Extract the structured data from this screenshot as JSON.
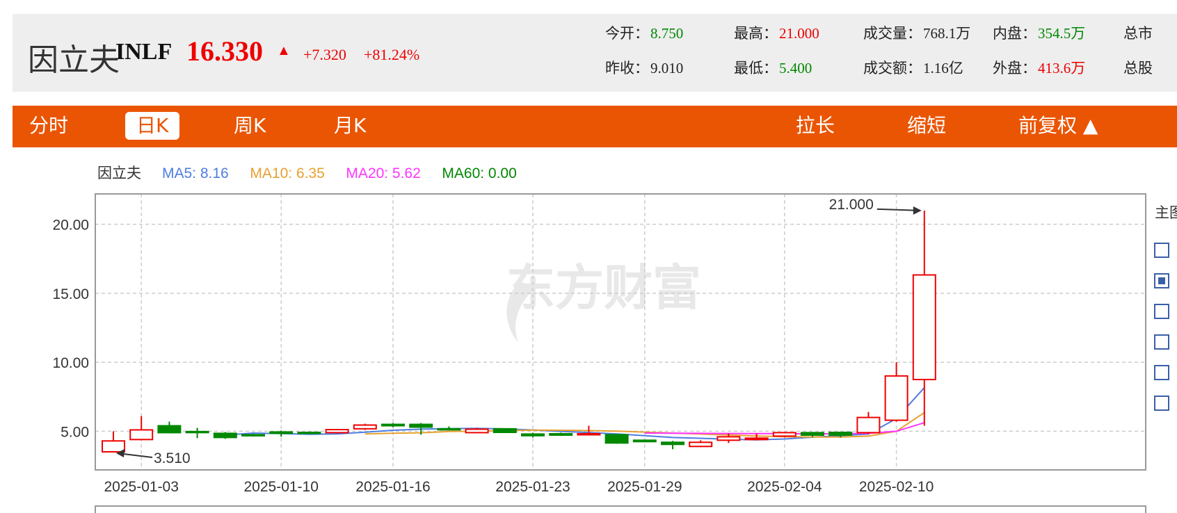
{
  "quote": {
    "name": "因立夫",
    "code": "INLF",
    "price": "16.330",
    "change": "+7.320",
    "change_pct": "+81.24%",
    "stats": [
      {
        "label": "今开：",
        "value": "8.750",
        "color": "green"
      },
      {
        "label": "最高：",
        "value": "21.000",
        "color": "red"
      },
      {
        "label": "成交量：",
        "value": "768.1万",
        "color": "dark"
      },
      {
        "label": "内盘：",
        "value": "354.5万",
        "color": "green"
      },
      {
        "label": "总市",
        "value": "",
        "color": "dark"
      },
      {
        "label": "昨收：",
        "value": "9.010",
        "color": "dark"
      },
      {
        "label": "最低：",
        "value": "5.400",
        "color": "green"
      },
      {
        "label": "成交额：",
        "value": "1.16亿",
        "color": "dark"
      },
      {
        "label": "外盘：",
        "value": "413.6万",
        "color": "red"
      },
      {
        "label": "总股",
        "value": "",
        "color": "dark"
      }
    ]
  },
  "tabs": {
    "intraday": "分时",
    "daily": "日K",
    "weekly": "周K",
    "monthly": "月K",
    "zoom_in": "拉长",
    "zoom_out": "缩短",
    "adjust": "前复权 ▲"
  },
  "colors": {
    "accent": "#ea5504",
    "up": "#ee0000",
    "down": "#008800",
    "ma5": "#4d7de0",
    "ma10": "#e8a030",
    "ma20": "#ff33ff",
    "ma60": "#008800"
  },
  "chart_data": {
    "type": "candlestick",
    "legend": {
      "name": "因立夫",
      "items": [
        {
          "label": "MA5: 8.16",
          "color": "#4d7de0"
        },
        {
          "label": "MA10: 6.35",
          "color": "#e8a030"
        },
        {
          "label": "MA20: 5.62",
          "color": "#ff33ff"
        },
        {
          "label": "MA60: 0.00",
          "color": "#008800"
        }
      ]
    },
    "watermark": "东方财富",
    "side_panel_label": "主图",
    "side_panel_checkboxes": [
      false,
      true,
      false,
      false,
      false,
      false
    ],
    "ylim": [
      2.2,
      22.2
    ],
    "yticks": [
      5,
      10,
      15,
      20
    ],
    "ytick_labels": [
      "5.00",
      "10.00",
      "15.00",
      "20.00"
    ],
    "xtick_labels": [
      {
        "i": 1,
        "label": "2025-01-03"
      },
      {
        "i": 6,
        "label": "2025-01-10"
      },
      {
        "i": 10,
        "label": "2025-01-16"
      },
      {
        "i": 15,
        "label": "2025-01-23"
      },
      {
        "i": 19,
        "label": "2025-01-29"
      },
      {
        "i": 24,
        "label": "2025-02-04"
      },
      {
        "i": 28,
        "label": "2025-02-10"
      }
    ],
    "candles": [
      {
        "o": 3.51,
        "c": 4.3,
        "h": 5.0,
        "l": 3.51
      },
      {
        "o": 4.4,
        "c": 5.1,
        "h": 6.1,
        "l": 4.4
      },
      {
        "o": 5.4,
        "c": 4.9,
        "h": 5.7,
        "l": 4.85
      },
      {
        "o": 4.98,
        "c": 4.92,
        "h": 5.25,
        "l": 4.5
      },
      {
        "o": 4.85,
        "c": 4.55,
        "h": 4.95,
        "l": 4.45
      },
      {
        "o": 4.75,
        "c": 4.68,
        "h": 4.82,
        "l": 4.62
      },
      {
        "o": 4.95,
        "c": 4.85,
        "h": 5.05,
        "l": 4.6
      },
      {
        "o": 4.92,
        "c": 4.86,
        "h": 4.98,
        "l": 4.8
      },
      {
        "o": 4.9,
        "c": 5.12,
        "h": 5.15,
        "l": 4.85
      },
      {
        "o": 5.18,
        "c": 5.45,
        "h": 5.55,
        "l": 5.1
      },
      {
        "o": 5.5,
        "c": 5.4,
        "h": 5.6,
        "l": 5.3
      },
      {
        "o": 5.5,
        "c": 5.3,
        "h": 5.6,
        "l": 4.75
      },
      {
        "o": 5.18,
        "c": 5.12,
        "h": 5.35,
        "l": 5.08
      },
      {
        "o": 4.9,
        "c": 5.15,
        "h": 5.25,
        "l": 4.85
      },
      {
        "o": 5.18,
        "c": 4.92,
        "h": 5.22,
        "l": 4.88
      },
      {
        "o": 4.8,
        "c": 4.68,
        "h": 4.88,
        "l": 4.55
      },
      {
        "o": 4.82,
        "c": 4.72,
        "h": 4.9,
        "l": 4.66
      },
      {
        "o": 4.75,
        "c": 4.82,
        "h": 5.4,
        "l": 4.7
      },
      {
        "o": 4.75,
        "c": 4.15,
        "h": 4.8,
        "l": 4.1
      },
      {
        "o": 4.35,
        "c": 4.25,
        "h": 4.4,
        "l": 4.2
      },
      {
        "o": 4.2,
        "c": 4.05,
        "h": 4.3,
        "l": 3.7
      },
      {
        "o": 3.9,
        "c": 4.2,
        "h": 4.35,
        "l": 3.85
      },
      {
        "o": 4.35,
        "c": 4.6,
        "h": 4.85,
        "l": 4.15
      },
      {
        "o": 4.4,
        "c": 4.5,
        "h": 4.85,
        "l": 4.35
      },
      {
        "o": 4.65,
        "c": 4.9,
        "h": 4.95,
        "l": 4.55
      },
      {
        "o": 4.9,
        "c": 4.72,
        "h": 4.95,
        "l": 4.58
      },
      {
        "o": 4.92,
        "c": 4.72,
        "h": 4.95,
        "l": 4.55
      },
      {
        "o": 4.9,
        "c": 6.0,
        "h": 6.4,
        "l": 4.8
      },
      {
        "o": 5.8,
        "c": 9.01,
        "h": 10.0,
        "l": 5.7
      },
      {
        "o": 8.75,
        "c": 16.33,
        "h": 21.0,
        "l": 5.4
      }
    ],
    "ma_lines": [
      {
        "name": "MA5",
        "color": "#4d7de0",
        "values": [
          null,
          null,
          null,
          null,
          4.72,
          4.87,
          4.83,
          4.78,
          4.81,
          4.93,
          5.07,
          5.15,
          5.19,
          5.21,
          5.17,
          5.09,
          4.99,
          4.91,
          4.81,
          4.68,
          4.55,
          4.49,
          4.42,
          4.38,
          4.44,
          4.57,
          4.68,
          4.8,
          5.92,
          8.16
        ]
      },
      {
        "name": "MA10",
        "color": "#e8a030",
        "values": [
          null,
          null,
          null,
          null,
          null,
          null,
          null,
          null,
          null,
          4.81,
          4.86,
          4.89,
          4.98,
          5.01,
          5.05,
          5.08,
          5.07,
          5.05,
          5.01,
          4.94,
          4.87,
          4.8,
          4.73,
          4.66,
          4.61,
          4.58,
          4.58,
          4.65,
          5.0,
          6.35
        ]
      },
      {
        "name": "MA20",
        "color": "#ff33ff",
        "values": [
          null,
          null,
          null,
          null,
          null,
          null,
          null,
          null,
          null,
          null,
          null,
          null,
          null,
          null,
          null,
          null,
          null,
          null,
          null,
          4.87,
          4.86,
          4.85,
          4.84,
          4.83,
          4.83,
          4.82,
          4.82,
          4.85,
          5.0,
          5.62
        ]
      }
    ],
    "annotations": [
      {
        "label": "21.000",
        "i": 29,
        "value": 21.0
      },
      {
        "label": "3.510",
        "i": 0,
        "value": 3.51
      }
    ]
  }
}
